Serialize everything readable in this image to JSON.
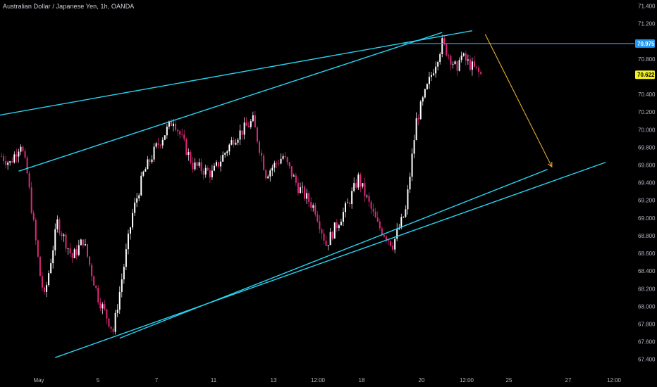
{
  "header": {
    "title": "Australian Dollar / Japanese Yen, 1h, OANDA"
  },
  "colors": {
    "background": "#000000",
    "up_candle": "#ffffff",
    "down_candle": "#e0267a",
    "trendline": "#29d3f0",
    "level_line": "#2196f3",
    "projection_arrow": "#d4a22e",
    "price_tag_bg": "#f4f120",
    "level_tag_bg": "#2196f3"
  },
  "chart_data": {
    "type": "candlestick",
    "title": "Australian Dollar / Japanese Yen, 1h, OANDA",
    "y_axis": {
      "ticks": [
        "71.400",
        "71.200",
        "70.800",
        "70.600",
        "70.400",
        "70.200",
        "70.000",
        "69.800",
        "69.600",
        "69.400",
        "69.200",
        "69.000",
        "68.800",
        "68.600",
        "68.400",
        "68.200",
        "68.000",
        "67.800",
        "67.600",
        "67.400"
      ],
      "ylim": [
        67.35,
        71.42
      ]
    },
    "x_axis": {
      "ticks": [
        "May",
        "5",
        "7",
        "11",
        "13",
        "12:00",
        "18",
        "20",
        "12:00",
        "25",
        "27",
        "12:00"
      ]
    },
    "price_tags": [
      {
        "label": "70.975",
        "value": 70.975,
        "style": "level"
      },
      {
        "label": "70.622",
        "value": 70.622,
        "style": "current"
      }
    ],
    "price_path": {
      "x_index": [
        0,
        4,
        9,
        12,
        18,
        20,
        26,
        33,
        38,
        45,
        52,
        61,
        66,
        72,
        80,
        89,
        98,
        108,
        117,
        123,
        131,
        138,
        146,
        151,
        161,
        166,
        175,
        182,
        188,
        193,
        199,
        205,
        211,
        212,
        213,
        223
      ],
      "close": [
        69.7,
        69.62,
        69.85,
        69.5,
        68.35,
        68.1,
        68.95,
        68.55,
        68.75,
        68.1,
        67.72,
        69.05,
        69.5,
        69.8,
        70.12,
        69.6,
        69.5,
        69.9,
        70.1,
        69.5,
        69.7,
        69.35,
        69.1,
        68.7,
        69.15,
        69.45,
        68.92,
        68.7,
        69.08,
        70.1,
        70.55,
        70.98,
        70.72,
        70.6,
        70.85,
        70.62
      ]
    },
    "bars_drawn": 224,
    "lines": [
      {
        "name": "upper-channel-outer",
        "kind": "trendline",
        "points": [
          [
            -11,
            70.12
          ],
          [
            219,
            71.12
          ]
        ]
      },
      {
        "name": "upper-channel-inner",
        "kind": "trendline",
        "points": [
          [
            8,
            69.53
          ],
          [
            205,
            71.1
          ]
        ]
      },
      {
        "name": "lower-channel-inner",
        "kind": "trendline",
        "points": [
          [
            55,
            67.64
          ],
          [
            254,
            69.55
          ]
        ]
      },
      {
        "name": "lower-channel-outer",
        "kind": "trendline",
        "points": [
          [
            25,
            67.42
          ],
          [
            281,
            69.63
          ]
        ]
      },
      {
        "name": "resistance-level",
        "kind": "horizontal",
        "value": 70.975,
        "x_from": 185
      }
    ],
    "projection": {
      "from": [
        225,
        71.08
      ],
      "to": [
        256,
        69.58
      ]
    }
  }
}
